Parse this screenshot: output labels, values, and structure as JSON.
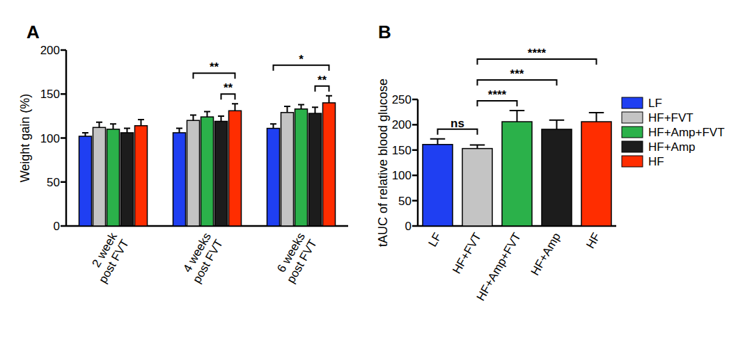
{
  "chart_data": [
    {
      "type": "bar",
      "title": "A",
      "y_label": "Weight gain (%)",
      "categories": [
        "2 week\npost FVT",
        "4 weeks\npost FVT",
        "6 weeks\npost FVT"
      ],
      "series": [
        {
          "name": "LF",
          "color": "#1f3ff2",
          "values": [
            102,
            106,
            111
          ],
          "errors": [
            4,
            5,
            5
          ]
        },
        {
          "name": "HF+FVT",
          "color": "#c4c4c4",
          "values": [
            112,
            120,
            129
          ],
          "errors": [
            6,
            6,
            7
          ]
        },
        {
          "name": "HF+Amp+FVT",
          "color": "#2bb14a",
          "values": [
            110,
            124,
            133
          ],
          "errors": [
            6,
            6,
            5
          ]
        },
        {
          "name": "HF+Amp",
          "color": "#1c1c1c",
          "values": [
            106,
            119,
            128
          ],
          "errors": [
            5,
            6,
            7
          ]
        },
        {
          "name": "HF",
          "color": "#ff2d00",
          "values": [
            114,
            131,
            140
          ],
          "errors": [
            7,
            8,
            8
          ]
        }
      ],
      "ylim": [
        0,
        200
      ],
      "yticks": [
        0,
        50,
        100,
        150,
        200
      ],
      "annotations": [
        {
          "text": "**",
          "category": 1,
          "from": 1,
          "to": 4
        },
        {
          "text": "**",
          "category": 1,
          "from": 3,
          "to": 4
        },
        {
          "text": "*",
          "category": 2,
          "from": 0,
          "to": 4
        },
        {
          "text": "**",
          "category": 2,
          "from": 3,
          "to": 4
        }
      ]
    },
    {
      "type": "bar",
      "title": "B",
      "y_label": "tAUC of relative blood glucose",
      "categories": [
        "LF",
        "HF+FVT",
        "HF+Amp+FVT",
        "HF+Amp",
        "HF"
      ],
      "values": [
        161,
        153,
        206,
        191,
        206
      ],
      "errors": [
        11,
        7,
        22,
        18,
        18
      ],
      "colors": [
        "#1f3ff2",
        "#c4c4c4",
        "#2bb14a",
        "#1c1c1c",
        "#ff2d00"
      ],
      "ylim": [
        0,
        250
      ],
      "yticks": [
        0,
        50,
        100,
        150,
        200,
        250
      ],
      "legend": "right",
      "annotations": [
        {
          "text": "ns",
          "from": 0,
          "to": 1
        },
        {
          "text": "****",
          "from": 1,
          "to": 2
        },
        {
          "text": "***",
          "from": 1,
          "to": 3
        },
        {
          "text": "****",
          "from": 1,
          "to": 4
        }
      ]
    }
  ]
}
